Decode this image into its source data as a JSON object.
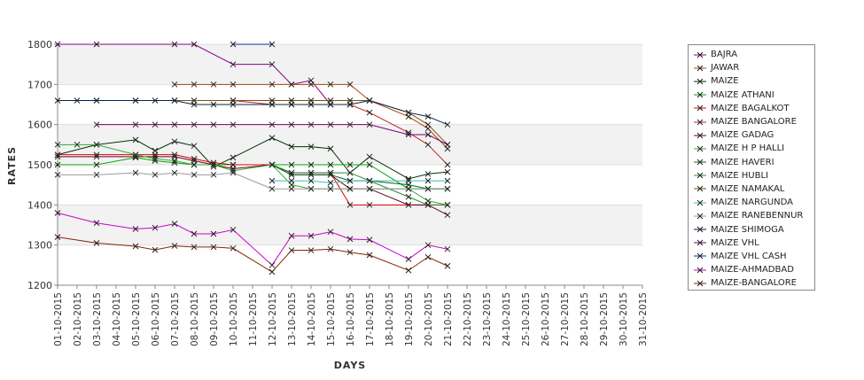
{
  "chart_data": {
    "type": "line",
    "title": "",
    "xlabel": "DAYS",
    "ylabel": "RATES",
    "ylim": [
      1200,
      1800
    ],
    "yticks": [
      1200,
      1300,
      1400,
      1500,
      1600,
      1700,
      1800
    ],
    "grid": "alternating horizontal bands",
    "legend_position": "right",
    "x": [
      "01-10-2015",
      "02-10-2015",
      "03-10-2015",
      "04-10-2015",
      "05-10-2015",
      "06-10-2015",
      "07-10-2015",
      "08-10-2015",
      "09-10-2015",
      "10-10-2015",
      "11-10-2015",
      "12-10-2015",
      "13-10-2015",
      "14-10-2015",
      "15-10-2015",
      "16-10-2015",
      "17-10-2015",
      "18-10-2015",
      "19-10-2015",
      "20-10-2015",
      "21-10-2015",
      "22-10-2015",
      "23-10-2015",
      "24-10-2015",
      "25-10-2015",
      "26-10-2015",
      "27-10-2015",
      "28-10-2015",
      "29-10-2015",
      "30-10-2015",
      "31-10-2015"
    ],
    "series": [
      {
        "name": "BAJRA",
        "color": "#880088",
        "points": [
          [
            0,
            1800
          ],
          [
            2,
            1800
          ],
          [
            6,
            1800
          ],
          [
            7,
            1800
          ],
          [
            9,
            1750
          ],
          [
            11,
            1750
          ],
          [
            12,
            1700
          ],
          [
            13,
            1710
          ],
          [
            14,
            1650
          ],
          [
            15,
            1650
          ]
        ]
      },
      {
        "name": "JAWAR",
        "color": "#aa4411",
        "points": [
          [
            6,
            1700
          ],
          [
            7,
            1700
          ],
          [
            8,
            1700
          ],
          [
            9,
            1700
          ],
          [
            11,
            1700
          ],
          [
            12,
            1700
          ],
          [
            13,
            1700
          ],
          [
            14,
            1700
          ],
          [
            15,
            1700
          ],
          [
            16,
            1660
          ],
          [
            18,
            1620
          ],
          [
            19,
            1590
          ],
          [
            20,
            1540
          ]
        ]
      },
      {
        "name": "MAIZE",
        "color": "#003300",
        "points": [
          [
            0,
            1525
          ],
          [
            2,
            1550
          ],
          [
            4,
            1562
          ],
          [
            5,
            1535
          ],
          [
            6,
            1558
          ],
          [
            7,
            1547
          ],
          [
            8,
            1495
          ],
          [
            9,
            1518
          ],
          [
            11,
            1567
          ],
          [
            12,
            1545
          ],
          [
            13,
            1545
          ],
          [
            14,
            1540
          ],
          [
            15,
            1480
          ],
          [
            16,
            1520
          ],
          [
            18,
            1465
          ],
          [
            19,
            1477
          ],
          [
            20,
            1482
          ]
        ]
      },
      {
        "name": "MAIZE ATHANI",
        "color": "#00aa00",
        "points": [
          [
            0,
            1500
          ],
          [
            2,
            1500
          ],
          [
            4,
            1518
          ],
          [
            5,
            1510
          ],
          [
            6,
            1505
          ],
          [
            7,
            1500
          ],
          [
            8,
            1500
          ],
          [
            9,
            1500
          ],
          [
            11,
            1500
          ],
          [
            12,
            1500
          ],
          [
            13,
            1500
          ],
          [
            14,
            1500
          ],
          [
            15,
            1500
          ],
          [
            16,
            1500
          ],
          [
            18,
            1440
          ],
          [
            19,
            1440
          ],
          [
            20,
            1440
          ]
        ]
      },
      {
        "name": "MAIZE BAGALKOT",
        "color": "#dd0000",
        "points": [
          [
            0,
            1525
          ],
          [
            2,
            1525
          ],
          [
            4,
            1525
          ],
          [
            5,
            1525
          ],
          [
            6,
            1525
          ],
          [
            7,
            1515
          ],
          [
            8,
            1505
          ],
          [
            9,
            1500
          ],
          [
            11,
            1500
          ],
          [
            12,
            1480
          ],
          [
            13,
            1480
          ],
          [
            14,
            1480
          ],
          [
            15,
            1400
          ],
          [
            16,
            1400
          ],
          [
            18,
            1400
          ],
          [
            19,
            1400
          ],
          [
            20,
            1400
          ]
        ]
      },
      {
        "name": "MAIZE BANGALORE",
        "color": "#bb2222",
        "points": [
          [
            9,
            1660
          ],
          [
            11,
            1650
          ],
          [
            12,
            1650
          ],
          [
            13,
            1650
          ],
          [
            14,
            1650
          ],
          [
            15,
            1650
          ],
          [
            16,
            1630
          ],
          [
            18,
            1580
          ],
          [
            19,
            1550
          ],
          [
            20,
            1500
          ]
        ]
      },
      {
        "name": "MAIZE GADAG",
        "color": "#660022",
        "points": [
          [
            0,
            1520
          ],
          [
            2,
            1520
          ],
          [
            4,
            1520
          ],
          [
            5,
            1520
          ],
          [
            6,
            1520
          ],
          [
            7,
            1510
          ],
          [
            8,
            1500
          ],
          [
            9,
            1490
          ],
          [
            11,
            1500
          ],
          [
            12,
            1475
          ],
          [
            13,
            1475
          ],
          [
            14,
            1475
          ],
          [
            15,
            1440
          ],
          [
            16,
            1440
          ],
          [
            18,
            1400
          ],
          [
            19,
            1400
          ],
          [
            20,
            1375
          ]
        ]
      },
      {
        "name": "MAIZE H P HALLI",
        "color": "#33aa33",
        "points": [
          [
            0,
            1550
          ],
          [
            1,
            1550
          ],
          [
            2,
            1550
          ],
          [
            4,
            1525
          ],
          [
            5,
            1515
          ],
          [
            6,
            1510
          ],
          [
            7,
            1500
          ],
          [
            8,
            1500
          ],
          [
            9,
            1485
          ],
          [
            11,
            1500
          ],
          [
            12,
            1450
          ],
          [
            13,
            1440
          ],
          [
            14,
            1440
          ],
          [
            15,
            1440
          ],
          [
            16,
            1440
          ],
          [
            18,
            1440
          ],
          [
            19,
            1410
          ],
          [
            20,
            1400
          ]
        ]
      },
      {
        "name": "MAIZE HAVERI",
        "color": "#006622",
        "points": [
          [
            11,
            1500
          ],
          [
            12,
            1475
          ],
          [
            13,
            1475
          ],
          [
            14,
            1475
          ],
          [
            15,
            1460
          ],
          [
            16,
            1460
          ],
          [
            18,
            1450
          ],
          [
            19,
            1440
          ],
          [
            20,
            1440
          ]
        ]
      },
      {
        "name": "MAIZE HUBLI",
        "color": "#338833",
        "points": [
          [
            11,
            1500
          ],
          [
            12,
            1480
          ],
          [
            13,
            1480
          ],
          [
            14,
            1480
          ],
          [
            15,
            1480
          ],
          [
            16,
            1460
          ],
          [
            18,
            1420
          ],
          [
            19,
            1400
          ],
          [
            20,
            1400
          ]
        ]
      },
      {
        "name": "MAIZE NAMAKAL",
        "color": "#775500",
        "points": [
          [
            2,
            1660
          ],
          [
            4,
            1660
          ],
          [
            6,
            1660
          ],
          [
            7,
            1660
          ],
          [
            9,
            1660
          ],
          [
            11,
            1660
          ],
          [
            12,
            1660
          ],
          [
            13,
            1660
          ],
          [
            14,
            1660
          ],
          [
            15,
            1660
          ],
          [
            16,
            1660
          ],
          [
            18,
            1630
          ],
          [
            19,
            1600
          ],
          [
            20,
            1550
          ]
        ]
      },
      {
        "name": "MAIZE NARGUNDA",
        "color": "#44bbbb",
        "points": [
          [
            11,
            1460
          ],
          [
            12,
            1460
          ],
          [
            13,
            1460
          ],
          [
            14,
            1455
          ],
          [
            15,
            1460
          ],
          [
            16,
            1460
          ],
          [
            18,
            1460
          ],
          [
            19,
            1460
          ],
          [
            20,
            1460
          ]
        ]
      },
      {
        "name": "MAIZE RANEBENNUR",
        "color": "#999999",
        "points": [
          [
            0,
            1475
          ],
          [
            2,
            1475
          ],
          [
            4,
            1480
          ],
          [
            5,
            1475
          ],
          [
            6,
            1480
          ],
          [
            7,
            1475
          ],
          [
            8,
            1475
          ],
          [
            9,
            1480
          ],
          [
            11,
            1440
          ],
          [
            12,
            1440
          ],
          [
            13,
            1440
          ],
          [
            14,
            1440
          ],
          [
            15,
            1440
          ],
          [
            16,
            1440
          ],
          [
            18,
            1440
          ],
          [
            19,
            1440
          ],
          [
            20,
            1440
          ]
        ]
      },
      {
        "name": "MAIZE SHIMOGA",
        "color": "#002255",
        "points": [
          [
            0,
            1660
          ],
          [
            1,
            1660
          ],
          [
            2,
            1660
          ],
          [
            4,
            1660
          ],
          [
            5,
            1660
          ],
          [
            6,
            1660
          ],
          [
            7,
            1650
          ],
          [
            8,
            1650
          ],
          [
            9,
            1650
          ],
          [
            11,
            1650
          ],
          [
            12,
            1650
          ],
          [
            13,
            1650
          ],
          [
            14,
            1650
          ],
          [
            15,
            1650
          ],
          [
            16,
            1660
          ],
          [
            18,
            1630
          ],
          [
            19,
            1620
          ],
          [
            20,
            1600
          ]
        ]
      },
      {
        "name": "MAIZE VHL",
        "color": "#770077",
        "points": [
          [
            2,
            1600
          ],
          [
            4,
            1600
          ],
          [
            5,
            1600
          ],
          [
            6,
            1600
          ],
          [
            7,
            1600
          ],
          [
            8,
            1600
          ],
          [
            9,
            1600
          ],
          [
            11,
            1600
          ],
          [
            12,
            1600
          ],
          [
            13,
            1600
          ],
          [
            14,
            1600
          ],
          [
            15,
            1600
          ],
          [
            16,
            1600
          ],
          [
            18,
            1575
          ],
          [
            19,
            1575
          ],
          [
            20,
            1550
          ]
        ]
      },
      {
        "name": "MAIZE VHL CASH",
        "color": "#0033aa",
        "points": [
          [
            9,
            1800
          ],
          [
            11,
            1800
          ]
        ]
      },
      {
        "name": "MAIZE-AHMADBAD",
        "color": "#cc00cc",
        "points": [
          [
            0,
            1380
          ],
          [
            2,
            1355
          ],
          [
            4,
            1340
          ],
          [
            5,
            1343
          ],
          [
            6,
            1353
          ],
          [
            7,
            1328
          ],
          [
            8,
            1328
          ],
          [
            9,
            1338
          ],
          [
            11,
            1250
          ],
          [
            12,
            1323
          ],
          [
            13,
            1323
          ],
          [
            14,
            1333
          ],
          [
            15,
            1315
          ],
          [
            16,
            1313
          ],
          [
            18,
            1265
          ],
          [
            19,
            1300
          ],
          [
            20,
            1290
          ]
        ]
      },
      {
        "name": "MAIZE-BANGALORE",
        "color": "#882200",
        "points": [
          [
            0,
            1320
          ],
          [
            2,
            1305
          ],
          [
            4,
            1297
          ],
          [
            5,
            1288
          ],
          [
            6,
            1298
          ],
          [
            7,
            1295
          ],
          [
            8,
            1295
          ],
          [
            9,
            1292
          ],
          [
            11,
            1233
          ],
          [
            12,
            1287
          ],
          [
            13,
            1287
          ],
          [
            14,
            1290
          ],
          [
            15,
            1282
          ],
          [
            16,
            1275
          ],
          [
            18,
            1237
          ],
          [
            19,
            1270
          ],
          [
            20,
            1248
          ]
        ]
      }
    ]
  }
}
